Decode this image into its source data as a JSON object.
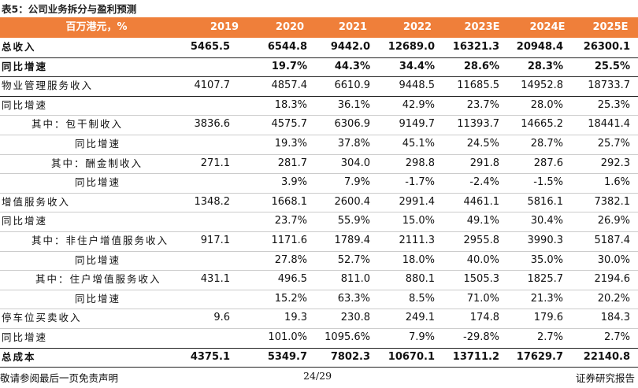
{
  "title": "表5：公司业务拆分与盈利预测",
  "table": {
    "header": [
      "百万港元，%",
      "2019",
      "2020",
      "2021",
      "2022",
      "2023E",
      "2024E",
      "2025E"
    ],
    "rows": [
      {
        "label": "总收入",
        "values": [
          "5465.5",
          "6544.8",
          "9442.0",
          "12689.0",
          "16321.3",
          "20948.4",
          "26300.1"
        ]
      },
      {
        "label": "同比增速",
        "values": [
          null,
          "19.7%",
          "44.3%",
          "34.4%",
          "28.6%",
          "28.3%",
          "25.5%"
        ]
      },
      {
        "label": "物业管理服务收入",
        "values": [
          "4107.7",
          "4857.4",
          "6610.9",
          "9448.5",
          "11685.5",
          "14952.8",
          "18733.7"
        ]
      },
      {
        "label": "同比增速",
        "values": [
          null,
          "18.3%",
          "36.1%",
          "42.9%",
          "23.7%",
          "28.0%",
          "25.3%"
        ]
      },
      {
        "label": "其中：包干制收入",
        "values": [
          "3836.6",
          "4575.7",
          "6306.9",
          "9149.7",
          "11393.7",
          "14665.2",
          "18441.4"
        ]
      },
      {
        "label": "同比增速",
        "values": [
          null,
          "19.3%",
          "37.8%",
          "45.1%",
          "24.5%",
          "28.7%",
          "25.7%"
        ]
      },
      {
        "label": "其中：酬金制收入",
        "values": [
          "271.1",
          "281.7",
          "304.0",
          "298.8",
          "291.8",
          "287.6",
          "292.3"
        ]
      },
      {
        "label": "同比增速",
        "values": [
          null,
          "3.9%",
          "7.9%",
          "-1.7%",
          "-2.4%",
          "-1.5%",
          "1.6%"
        ]
      },
      {
        "label": "增值服务收入",
        "values": [
          "1348.2",
          "1668.1",
          "2600.4",
          "2991.4",
          "4461.1",
          "5816.1",
          "7382.1"
        ]
      },
      {
        "label": "同比增速",
        "values": [
          null,
          "23.7%",
          "55.9%",
          "15.0%",
          "49.1%",
          "30.4%",
          "26.9%"
        ]
      },
      {
        "label": "其中：非住户增值服务收入",
        "values": [
          "917.1",
          "1171.6",
          "1789.4",
          "2111.3",
          "2955.8",
          "3990.3",
          "5187.4"
        ]
      },
      {
        "label": "同比增速",
        "values": [
          null,
          "27.8%",
          "52.7%",
          "18.0%",
          "40.0%",
          "35.0%",
          "30.0%"
        ]
      },
      {
        "label": "其中：住户增值服务收入",
        "values": [
          "431.1",
          "496.5",
          "811.0",
          "880.1",
          "1505.3",
          "1825.7",
          "2194.6"
        ]
      },
      {
        "label": "同比增速",
        "values": [
          null,
          "15.2%",
          "63.3%",
          "8.5%",
          "71.0%",
          "21.3%",
          "20.2%"
        ]
      },
      {
        "label": "停车位买卖收入",
        "values": [
          "9.6",
          "19.3",
          "230.8",
          "249.1",
          "174.8",
          "179.6",
          "184.3"
        ]
      },
      {
        "label": "同比增速",
        "values": [
          null,
          "101.0%",
          "1095.6%",
          "7.9%",
          "-29.8%",
          "2.7%",
          "2.7%"
        ]
      },
      {
        "label": "总成本",
        "values": [
          "4375.1",
          "5349.7",
          "7802.3",
          "10670.1",
          "13711.2",
          "17629.7",
          "22140.8"
        ]
      }
    ]
  },
  "footer": {
    "left": "敬请参阅最后一页免责声明",
    "center": "24/29",
    "right": "证券研究报告"
  }
}
